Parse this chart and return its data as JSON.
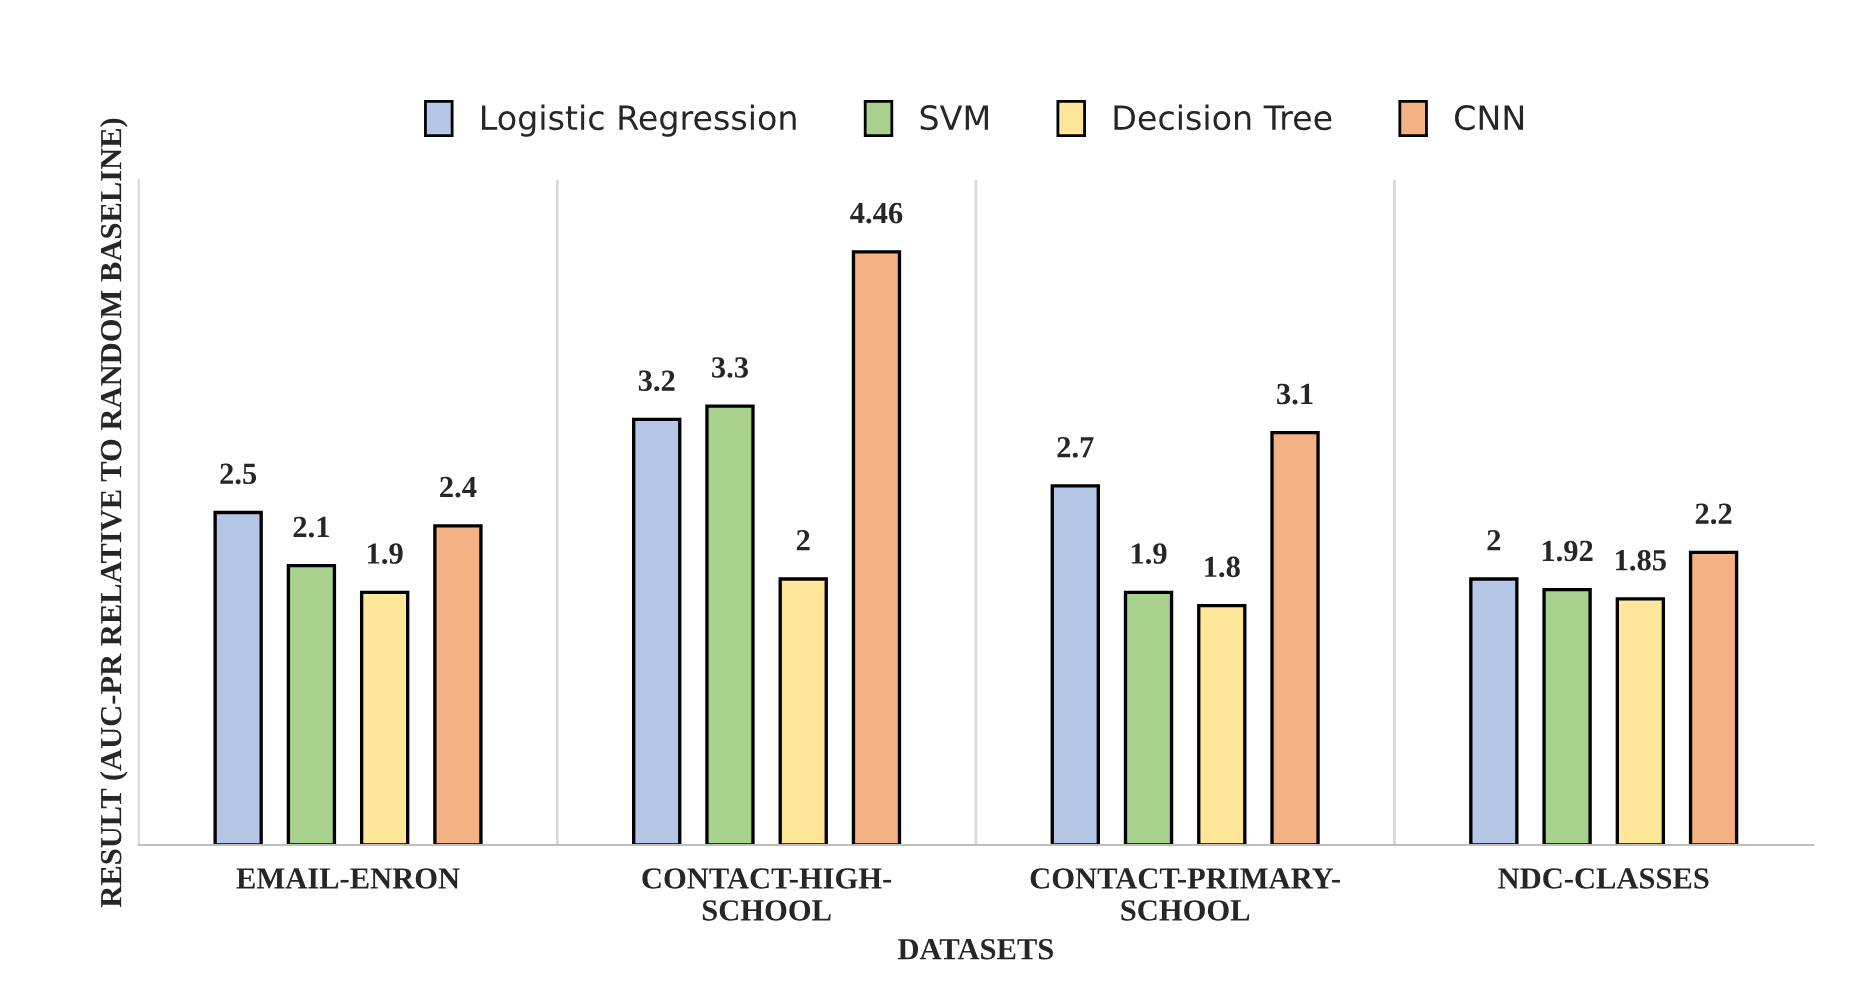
{
  "chart_data": {
    "type": "bar",
    "xlabel": "DATASETS",
    "ylabel": "RESULT (AUC-PR RELATIVE TO RANDOM BASELINE)",
    "categories": [
      "EMAIL-ENRON",
      "CONTACT-HIGH-SCHOOL",
      "CONTACT-PRIMARY-SCHOOL",
      "NDC-CLASSES"
    ],
    "series": [
      {
        "name": "Logistic Regression",
        "color": "#b4c7e7",
        "values": [
          2.5,
          3.2,
          2.7,
          2
        ]
      },
      {
        "name": "SVM",
        "color": "#a9d18e",
        "values": [
          2.1,
          3.3,
          1.9,
          1.92
        ]
      },
      {
        "name": "Decision Tree",
        "color": "#ffe699",
        "values": [
          1.9,
          2,
          1.8,
          1.85
        ]
      },
      {
        "name": "CNN",
        "color": "#f4b183",
        "values": [
          2.4,
          4.46,
          3.1,
          2.2
        ]
      }
    ],
    "ylim": [
      0,
      5
    ],
    "tick_labels": "x",
    "data_labels": true,
    "legend": "top",
    "grid": "x"
  }
}
